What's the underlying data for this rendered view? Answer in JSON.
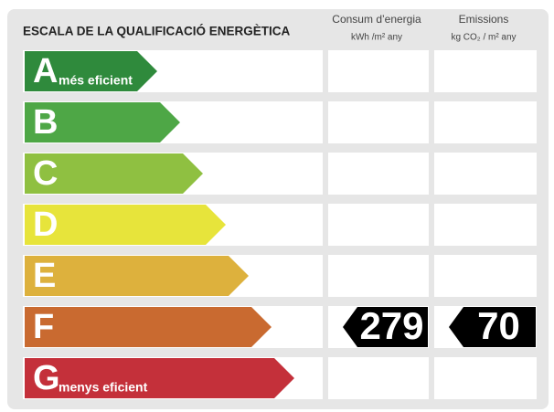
{
  "header": {
    "title": "ESCALA DE LA QUALIFICACIÓ ENERGÈTICA",
    "columns": [
      {
        "title": "Consum d’energia",
        "unit": "kWh /m² any"
      },
      {
        "title": "Emissions",
        "unit": "kg CO₂ / m² any"
      }
    ]
  },
  "rows": [
    {
      "letter": "A",
      "label": "més eficient",
      "color": "#2f8a3c"
    },
    {
      "letter": "B",
      "color": "#4ea746"
    },
    {
      "letter": "C",
      "color": "#8fc041"
    },
    {
      "letter": "D",
      "color": "#e7e43b"
    },
    {
      "letter": "E",
      "color": "#ddb13d"
    },
    {
      "letter": "F",
      "color": "#c96a30",
      "consumption": "279",
      "emissions": "70"
    },
    {
      "letter": "G",
      "label": "menys eficient",
      "color": "#c4303a"
    }
  ]
}
